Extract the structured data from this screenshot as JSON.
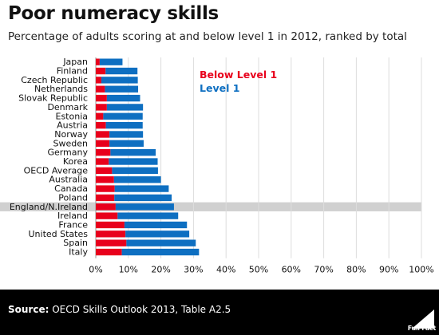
{
  "header": {
    "title": "Poor numeracy skills",
    "subtitle": "Percentage of adults scoring at and below level 1 in 2012, ranked by total"
  },
  "footer": {
    "source_label": "Source:",
    "source_text": "OECD Skills Outlook 2013, Table A2.5",
    "logo_text": "Full Fact"
  },
  "colors": {
    "below_level_1": "#e8001c",
    "level_1": "#0e6fc1",
    "highlight": "#d0d0d0",
    "grid": "#dddddd"
  },
  "chart_data": {
    "type": "bar",
    "orientation": "horizontal",
    "stacked": true,
    "title": "Poor numeracy skills",
    "subtitle": "Percentage of adults scoring at and below level 1 in 2012, ranked by total",
    "categories": [
      "Japan",
      "Finland",
      "Czech Republic",
      "Netherlands",
      "Slovak Republic",
      "Denmark",
      "Estonia",
      "Austria",
      "Norway",
      "Sweden",
      "Germany",
      "Korea",
      "OECD Average",
      "Australia",
      "Canada",
      "Poland",
      "England/N.Ireland",
      "Ireland",
      "France",
      "United States",
      "Spain",
      "Italy"
    ],
    "highlight_category": "England/N.Ireland",
    "series": [
      {
        "name": "Below Level 1",
        "color": "#e8001c",
        "values": [
          1.2,
          3.0,
          1.7,
          2.8,
          3.4,
          3.4,
          2.3,
          3.1,
          4.2,
          4.2,
          4.5,
          4.0,
          5.0,
          5.6,
          5.8,
          5.7,
          6.1,
          6.7,
          8.8,
          9.1,
          9.4,
          8.0
        ]
      },
      {
        "name": "Level 1",
        "color": "#0e6fc1",
        "values": [
          7.0,
          9.8,
          11.2,
          10.2,
          10.2,
          11.1,
          12.1,
          11.3,
          10.3,
          10.5,
          13.9,
          15.0,
          14.1,
          14.4,
          16.6,
          17.6,
          17.9,
          18.6,
          19.2,
          19.6,
          21.3,
          23.7
        ]
      }
    ],
    "xlim": [
      0,
      100
    ],
    "x_ticks": [
      "0%",
      "10%",
      "20%",
      "30%",
      "40%",
      "50%",
      "60%",
      "70%",
      "80%",
      "90%",
      "100%"
    ],
    "grid": true,
    "legend": {
      "placement": "top-center"
    }
  }
}
